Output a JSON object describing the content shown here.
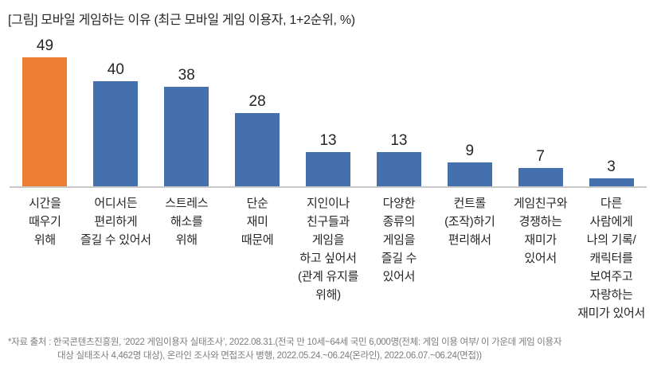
{
  "header": {
    "title": "[그림] 모바일 게임하는 이유 (최근 모바일 게임 이용자, 1+2순위, %)"
  },
  "chart_data": {
    "type": "bar",
    "title": "[그림] 모바일 게임하는 이유 (최근 모바일 게임 이용자, 1+2순위, %)",
    "unit": "%",
    "categories": [
      "시간을 때우기 위해",
      "어디서든 편리하게 즐길 수 있어서",
      "스트레스 해소를 위해",
      "단순 재미 때문에",
      "지인이나 친구들과 게임을 하고 싶어서 (관계 유지를 위해)",
      "다양한 종류의 게임을 즐길 수 있어서",
      "컨트롤 (조작)하기 편리해서",
      "게임친구와 경쟁하는 재미가 있어서",
      "다른 사람에게 나의 기록/ 캐릭터를 보여주고 자랑하는 재미가 있어서"
    ],
    "category_display": [
      "시간을\n때우기\n위해",
      "어디서든\n편리하게\n즐길 수 있어서",
      "스트레스\n해소를\n위해",
      "단순\n재미\n때문에",
      "지인이나\n친구들과\n게임을\n하고 싶어서\n(관계 유지를\n위해)",
      "다양한\n종류의\n게임을\n즐길 수\n있어서",
      "컨트롤\n(조작)하기\n편리해서",
      "게임친구와\n경쟁하는\n재미가\n있어서",
      "다른\n사람에게\n나의 기록/\n캐릭터를\n보여주고\n자랑하는\n재미가 있어서"
    ],
    "values": [
      49,
      40,
      38,
      28,
      13,
      13,
      9,
      7,
      3
    ],
    "value_labels_shown": true,
    "highlight_index": 0,
    "ylim": [
      0,
      55
    ],
    "grid": false,
    "legend": "none",
    "colors": {
      "bar_default": "#4471AE",
      "bar_highlight": "#ED7D31",
      "axis_line": "#C9C9C9",
      "value_label_text": "#262626",
      "category_text": "#262626"
    }
  },
  "footer": {
    "line1": "*자료 출처 : 한국콘텐츠진흥원, ‘2022 게임이용자 실태조사’, 2022.08.31.(전국 만 10세~64세 국민 6,000명(전체: 게임 이용 여부/ 이 가운데 게임 이용자",
    "line2": "대상 실태조사 4,462명 대상), 온라인 조사와 면접조사 병행, 2022.05.24.~06.24(온라인), 2022.06.07.~06.24(면접))"
  }
}
